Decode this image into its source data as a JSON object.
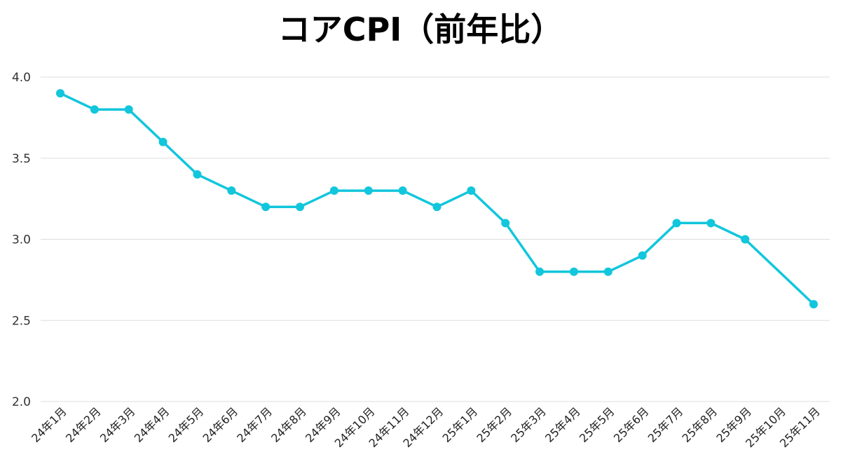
{
  "chart_data": {
    "type": "line",
    "title": "コアCPI（前年比）",
    "xlabel": "",
    "ylabel": "",
    "ylim": [
      2.0,
      4.0
    ],
    "yticks": [
      "2.0",
      "2.5",
      "3.0",
      "3.5",
      "4.0"
    ],
    "grid": true,
    "categories": [
      "24年1月",
      "24年2月",
      "24年3月",
      "24年4月",
      "24年5月",
      "24年6月",
      "24年7月",
      "24年8月",
      "24年9月",
      "24年10月",
      "24年11月",
      "24年12月",
      "25年1月",
      "25年2月",
      "25年3月",
      "25年4月",
      "25年5月",
      "25年6月",
      "25年7月",
      "25年8月",
      "25年9月",
      "25年10月",
      "25年11月"
    ],
    "series": [
      {
        "color": "#12c6dc",
        "values": [
          3.9,
          3.8,
          3.8,
          3.6,
          3.4,
          3.3,
          3.2,
          3.2,
          3.3,
          3.3,
          3.3,
          3.2,
          3.3,
          3.1,
          2.8,
          2.8,
          2.8,
          2.9,
          3.1,
          3.1,
          3.0,
          null,
          2.6
        ]
      }
    ]
  }
}
